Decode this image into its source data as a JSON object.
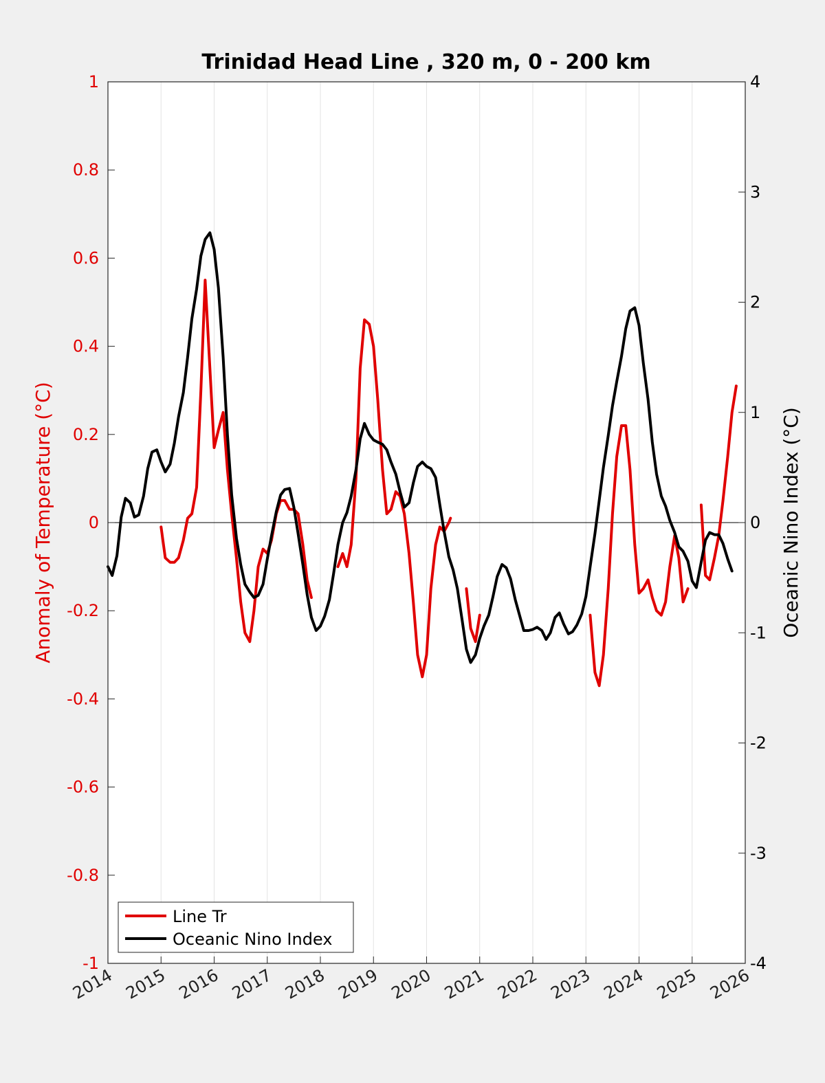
{
  "chart_data": {
    "type": "line",
    "title": "Trinidad Head Line , 320 m, 0 - 200 km",
    "ylabel_left": "Anomaly of Temperature (°C)",
    "ylabel_right": "Oceanic Nino Index (°C)",
    "xlim": [
      2014,
      2026
    ],
    "ylim_left": [
      -1,
      1
    ],
    "ylim_right": [
      -4,
      4
    ],
    "x_ticks": [
      2014,
      2015,
      2016,
      2017,
      2018,
      2019,
      2020,
      2021,
      2022,
      2023,
      2024,
      2025,
      2026
    ],
    "x_tick_labels": [
      "2014",
      "2015",
      "2016",
      "2017",
      "2018",
      "2019",
      "2020",
      "2021",
      "2022",
      "2023",
      "2024",
      "2025",
      "2026"
    ],
    "y_left_ticks": [
      1,
      0.8,
      0.6,
      0.4,
      0.2,
      0,
      -0.2,
      -0.4,
      -0.6,
      -0.8,
      -1
    ],
    "y_left_tick_labels": [
      "1",
      "0.8",
      "0.6",
      "0.4",
      "0.2",
      "0",
      "-0.2",
      "-0.4",
      "-0.6",
      "-0.8",
      "-1"
    ],
    "y_right_ticks": [
      4,
      3,
      2,
      1,
      0,
      -1,
      -2,
      -3,
      -4
    ],
    "y_right_tick_labels": [
      "4",
      "3",
      "2",
      "1",
      "0",
      "-1",
      "-2",
      "-3",
      "-4"
    ],
    "grid": "vertical",
    "legend_position": "bottom-left",
    "colors": {
      "line_tr": "#e00000",
      "oni": "#000000",
      "left_axis": "#e00000"
    },
    "series": [
      {
        "name": "Line Tr",
        "axis": "left",
        "color": "#e00000",
        "segments": [
          [
            [
              2015.0,
              -0.01
            ],
            [
              2015.08,
              -0.08
            ],
            [
              2015.17,
              -0.09
            ],
            [
              2015.25,
              -0.09
            ],
            [
              2015.33,
              -0.08
            ],
            [
              2015.42,
              -0.04
            ],
            [
              2015.5,
              0.01
            ],
            [
              2015.58,
              0.02
            ],
            [
              2015.67,
              0.08
            ],
            [
              2015.75,
              0.3
            ],
            [
              2015.83,
              0.55
            ],
            [
              2015.92,
              0.35
            ],
            [
              2016.0,
              0.17
            ],
            [
              2016.08,
              0.21
            ],
            [
              2016.17,
              0.25
            ],
            [
              2016.25,
              0.12
            ],
            [
              2016.33,
              0.02
            ],
            [
              2016.42,
              -0.08
            ],
            [
              2016.5,
              -0.18
            ],
            [
              2016.58,
              -0.25
            ],
            [
              2016.67,
              -0.27
            ],
            [
              2016.75,
              -0.2
            ],
            [
              2016.83,
              -0.1
            ],
            [
              2016.92,
              -0.06
            ],
            [
              2017.0,
              -0.07
            ],
            [
              2017.08,
              -0.04
            ],
            [
              2017.17,
              0.02
            ],
            [
              2017.25,
              0.05
            ],
            [
              2017.33,
              0.05
            ],
            [
              2017.42,
              0.03
            ],
            [
              2017.5,
              0.03
            ],
            [
              2017.58,
              0.02
            ],
            [
              2017.67,
              -0.05
            ],
            [
              2017.75,
              -0.13
            ],
            [
              2017.83,
              -0.17
            ]
          ],
          [
            [
              2018.33,
              -0.1
            ],
            [
              2018.42,
              -0.07
            ],
            [
              2018.5,
              -0.1
            ],
            [
              2018.58,
              -0.05
            ],
            [
              2018.67,
              0.1
            ],
            [
              2018.75,
              0.35
            ],
            [
              2018.83,
              0.46
            ],
            [
              2018.92,
              0.45
            ],
            [
              2019.0,
              0.4
            ],
            [
              2019.08,
              0.28
            ],
            [
              2019.17,
              0.12
            ],
            [
              2019.25,
              0.02
            ],
            [
              2019.33,
              0.03
            ],
            [
              2019.42,
              0.07
            ],
            [
              2019.5,
              0.06
            ],
            [
              2019.58,
              0.02
            ],
            [
              2019.67,
              -0.07
            ],
            [
              2019.75,
              -0.18
            ],
            [
              2019.83,
              -0.3
            ],
            [
              2019.92,
              -0.35
            ],
            [
              2020.0,
              -0.3
            ],
            [
              2020.08,
              -0.15
            ],
            [
              2020.17,
              -0.05
            ],
            [
              2020.25,
              -0.01
            ],
            [
              2020.33,
              -0.02
            ],
            [
              2020.42,
              0.0
            ],
            [
              2020.45,
              0.01
            ]
          ],
          [
            [
              2020.75,
              -0.15
            ],
            [
              2020.83,
              -0.24
            ],
            [
              2020.92,
              -0.27
            ],
            [
              2021.0,
              -0.21
            ]
          ],
          [
            [
              2023.08,
              -0.21
            ],
            [
              2023.17,
              -0.34
            ],
            [
              2023.25,
              -0.37
            ],
            [
              2023.33,
              -0.3
            ],
            [
              2023.42,
              -0.15
            ],
            [
              2023.5,
              0.02
            ],
            [
              2023.58,
              0.15
            ],
            [
              2023.67,
              0.22
            ],
            [
              2023.75,
              0.22
            ],
            [
              2023.83,
              0.12
            ],
            [
              2023.92,
              -0.05
            ],
            [
              2024.0,
              -0.16
            ],
            [
              2024.08,
              -0.15
            ],
            [
              2024.17,
              -0.13
            ],
            [
              2024.25,
              -0.17
            ],
            [
              2024.33,
              -0.2
            ],
            [
              2024.42,
              -0.21
            ],
            [
              2024.5,
              -0.18
            ],
            [
              2024.58,
              -0.1
            ],
            [
              2024.67,
              -0.03
            ],
            [
              2024.75,
              -0.08
            ],
            [
              2024.83,
              -0.18
            ],
            [
              2024.92,
              -0.15
            ]
          ],
          [
            [
              2025.17,
              0.04
            ],
            [
              2025.25,
              -0.12
            ],
            [
              2025.33,
              -0.13
            ],
            [
              2025.42,
              -0.08
            ],
            [
              2025.5,
              -0.03
            ],
            [
              2025.58,
              0.05
            ],
            [
              2025.67,
              0.15
            ],
            [
              2025.75,
              0.25
            ],
            [
              2025.83,
              0.31
            ]
          ]
        ]
      },
      {
        "name": "Oceanic Nino Index",
        "axis": "right",
        "color": "#000000",
        "segments": [
          [
            [
              2014.0,
              -0.4
            ],
            [
              2014.08,
              -0.48
            ],
            [
              2014.17,
              -0.3
            ],
            [
              2014.25,
              0.05
            ],
            [
              2014.33,
              0.22
            ],
            [
              2014.42,
              0.18
            ],
            [
              2014.5,
              0.05
            ],
            [
              2014.58,
              0.07
            ],
            [
              2014.67,
              0.24
            ],
            [
              2014.75,
              0.49
            ],
            [
              2014.83,
              0.64
            ],
            [
              2014.92,
              0.66
            ],
            [
              2015.0,
              0.55
            ],
            [
              2015.08,
              0.46
            ],
            [
              2015.17,
              0.53
            ],
            [
              2015.25,
              0.72
            ],
            [
              2015.33,
              0.96
            ],
            [
              2015.42,
              1.18
            ],
            [
              2015.5,
              1.5
            ],
            [
              2015.58,
              1.85
            ],
            [
              2015.67,
              2.12
            ],
            [
              2015.75,
              2.42
            ],
            [
              2015.83,
              2.57
            ],
            [
              2015.92,
              2.63
            ],
            [
              2016.0,
              2.48
            ],
            [
              2016.08,
              2.13
            ],
            [
              2016.17,
              1.5
            ],
            [
              2016.25,
              0.8
            ],
            [
              2016.33,
              0.25
            ],
            [
              2016.42,
              -0.14
            ],
            [
              2016.5,
              -0.38
            ],
            [
              2016.58,
              -0.56
            ],
            [
              2016.67,
              -0.63
            ],
            [
              2016.75,
              -0.68
            ],
            [
              2016.83,
              -0.66
            ],
            [
              2016.92,
              -0.56
            ],
            [
              2017.0,
              -0.33
            ],
            [
              2017.08,
              -0.12
            ],
            [
              2017.17,
              0.1
            ],
            [
              2017.25,
              0.25
            ],
            [
              2017.33,
              0.3
            ],
            [
              2017.42,
              0.31
            ],
            [
              2017.5,
              0.14
            ],
            [
              2017.58,
              -0.1
            ],
            [
              2017.67,
              -0.38
            ],
            [
              2017.75,
              -0.65
            ],
            [
              2017.83,
              -0.86
            ],
            [
              2017.92,
              -0.98
            ],
            [
              2018.0,
              -0.94
            ],
            [
              2018.08,
              -0.85
            ],
            [
              2018.17,
              -0.7
            ],
            [
              2018.25,
              -0.46
            ],
            [
              2018.33,
              -0.2
            ],
            [
              2018.42,
              0.0
            ],
            [
              2018.5,
              0.09
            ],
            [
              2018.58,
              0.24
            ],
            [
              2018.67,
              0.48
            ],
            [
              2018.75,
              0.76
            ],
            [
              2018.83,
              0.9
            ],
            [
              2018.92,
              0.8
            ],
            [
              2019.0,
              0.75
            ],
            [
              2019.08,
              0.73
            ],
            [
              2019.17,
              0.71
            ],
            [
              2019.25,
              0.66
            ],
            [
              2019.33,
              0.55
            ],
            [
              2019.42,
              0.44
            ],
            [
              2019.5,
              0.28
            ],
            [
              2019.58,
              0.14
            ],
            [
              2019.67,
              0.18
            ],
            [
              2019.75,
              0.36
            ],
            [
              2019.83,
              0.51
            ],
            [
              2019.92,
              0.55
            ],
            [
              2020.0,
              0.51
            ],
            [
              2020.08,
              0.49
            ],
            [
              2020.17,
              0.41
            ],
            [
              2020.25,
              0.16
            ],
            [
              2020.33,
              -0.08
            ],
            [
              2020.42,
              -0.31
            ],
            [
              2020.5,
              -0.43
            ],
            [
              2020.58,
              -0.6
            ],
            [
              2020.67,
              -0.89
            ],
            [
              2020.75,
              -1.15
            ],
            [
              2020.83,
              -1.27
            ],
            [
              2020.92,
              -1.2
            ],
            [
              2021.0,
              -1.05
            ],
            [
              2021.08,
              -0.94
            ],
            [
              2021.17,
              -0.84
            ],
            [
              2021.25,
              -0.67
            ],
            [
              2021.33,
              -0.49
            ],
            [
              2021.42,
              -0.38
            ],
            [
              2021.5,
              -0.41
            ],
            [
              2021.58,
              -0.51
            ],
            [
              2021.67,
              -0.7
            ],
            [
              2021.75,
              -0.84
            ],
            [
              2021.83,
              -0.98
            ],
            [
              2021.92,
              -0.98
            ],
            [
              2022.0,
              -0.97
            ],
            [
              2022.08,
              -0.95
            ],
            [
              2022.17,
              -0.98
            ],
            [
              2022.25,
              -1.06
            ],
            [
              2022.33,
              -1.0
            ],
            [
              2022.42,
              -0.86
            ],
            [
              2022.5,
              -0.82
            ],
            [
              2022.58,
              -0.92
            ],
            [
              2022.67,
              -1.01
            ],
            [
              2022.75,
              -0.99
            ],
            [
              2022.83,
              -0.93
            ],
            [
              2022.92,
              -0.83
            ],
            [
              2023.0,
              -0.67
            ],
            [
              2023.08,
              -0.4
            ],
            [
              2023.17,
              -0.1
            ],
            [
              2023.25,
              0.2
            ],
            [
              2023.33,
              0.5
            ],
            [
              2023.42,
              0.79
            ],
            [
              2023.5,
              1.06
            ],
            [
              2023.58,
              1.28
            ],
            [
              2023.67,
              1.51
            ],
            [
              2023.75,
              1.76
            ],
            [
              2023.83,
              1.92
            ],
            [
              2023.92,
              1.95
            ],
            [
              2024.0,
              1.79
            ],
            [
              2024.08,
              1.45
            ],
            [
              2024.17,
              1.12
            ],
            [
              2024.25,
              0.73
            ],
            [
              2024.33,
              0.44
            ],
            [
              2024.42,
              0.24
            ],
            [
              2024.5,
              0.15
            ],
            [
              2024.58,
              0.02
            ],
            [
              2024.67,
              -0.09
            ],
            [
              2024.75,
              -0.22
            ],
            [
              2024.83,
              -0.26
            ],
            [
              2024.92,
              -0.35
            ],
            [
              2025.0,
              -0.53
            ],
            [
              2025.08,
              -0.59
            ],
            [
              2025.17,
              -0.36
            ],
            [
              2025.25,
              -0.16
            ],
            [
              2025.33,
              -0.09
            ],
            [
              2025.42,
              -0.11
            ],
            [
              2025.5,
              -0.11
            ],
            [
              2025.58,
              -0.19
            ],
            [
              2025.67,
              -0.33
            ],
            [
              2025.75,
              -0.44
            ]
          ]
        ]
      }
    ]
  }
}
